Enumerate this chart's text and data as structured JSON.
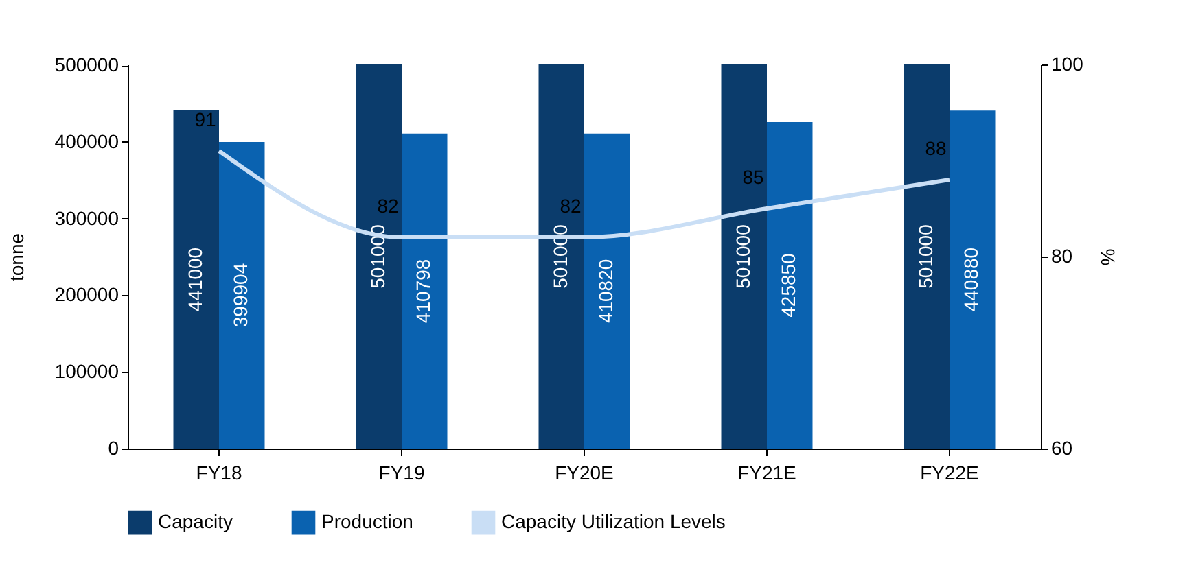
{
  "chart_data": {
    "type": "bar",
    "categories": [
      "FY18",
      "FY19",
      "FY20E",
      "FY21E",
      "FY22E"
    ],
    "series": [
      {
        "name": "Capacity",
        "color": "#0b3c6c",
        "values": [
          441000,
          501000,
          501000,
          501000,
          501000
        ]
      },
      {
        "name": "Production",
        "color": "#0a62b0",
        "values": [
          399904,
          410798,
          410820,
          425850,
          440880
        ]
      },
      {
        "name": "Capacity Utilization Levels",
        "type": "line",
        "axis": "y2",
        "color": "#c9def5",
        "values": [
          91,
          82,
          82,
          85,
          88
        ]
      }
    ],
    "ylabel": "tonne",
    "y2label": "%",
    "ylim": [
      0,
      501000
    ],
    "yticks": [
      0,
      100000,
      200000,
      300000,
      400000,
      500000
    ],
    "y2lim": [
      60,
      100
    ],
    "y2ticks": [
      60,
      80,
      100
    ],
    "data_labels": true,
    "legend": "bottom",
    "grid": false
  }
}
